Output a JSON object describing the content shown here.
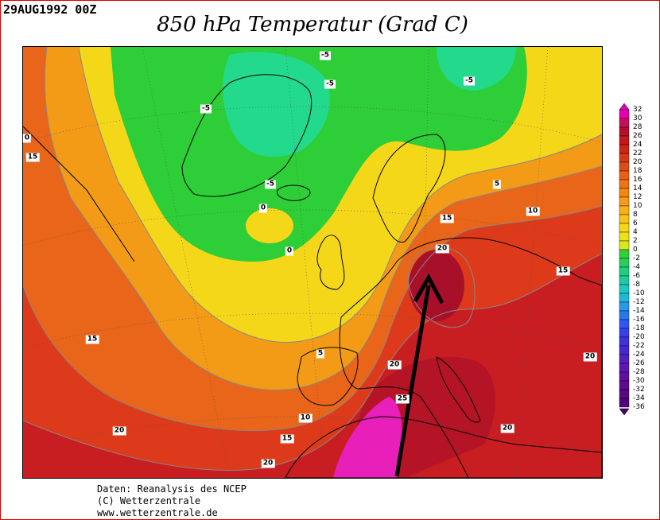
{
  "header": {
    "date": "29AUG1992 00Z",
    "title": "850 hPa Temperatur (Grad C)"
  },
  "map": {
    "contour_labels": [
      "-5",
      "-5",
      "-5",
      "-5",
      "-5",
      "0",
      "0",
      "0",
      "5",
      "10",
      "15",
      "15",
      "15",
      "20",
      "20",
      "25",
      "20",
      "20",
      "20",
      "15",
      "10",
      "5",
      "15",
      "20",
      "20",
      "15",
      "20"
    ],
    "colors": {
      "deep_red": "#a8102a",
      "red": "#d0281e",
      "orange_red": "#e35a12",
      "orange": "#f28a0c",
      "light_orange": "#f9b31a",
      "yellow": "#f4e01b",
      "green": "#22d035",
      "teal": "#1fd88a",
      "magenta": "#ec18c0"
    },
    "annotation": "arrow"
  },
  "legend": {
    "labels": [
      "32",
      "30",
      "28",
      "26",
      "24",
      "22",
      "20",
      "18",
      "16",
      "14",
      "12",
      "10",
      "8",
      "6",
      "4",
      "2",
      "0",
      "-2",
      "-4",
      "-6",
      "-8",
      "-10",
      "-12",
      "-14",
      "-16",
      "-18",
      "-20",
      "-22",
      "-24",
      "-26",
      "-28",
      "-30",
      "-32",
      "-34",
      "-36"
    ]
  },
  "credits": {
    "line1": "Daten: Reanalysis des NCEP",
    "line2": "(C) Wetterzentrale",
    "line3": "www.wetterzentrale.de"
  }
}
